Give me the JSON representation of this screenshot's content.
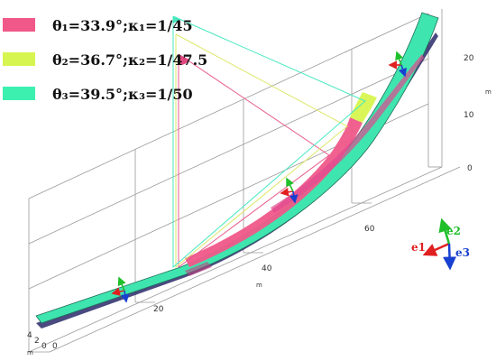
{
  "legend": [
    {
      "text": "θ₁=33.9°;κ₁=1/45",
      "color": "#F0588A"
    },
    {
      "text": "θ₂=36.7°;κ₂=1/47.5",
      "color": "#D7F550"
    },
    {
      "text": "θ₃=39.5°;κ₃=1/50",
      "color": "#3CF0B0"
    }
  ],
  "axes": {
    "x_ticks": [
      "20",
      "40",
      "60"
    ],
    "x_unit": "m",
    "y_ticks": [
      "4",
      "2",
      "0"
    ],
    "y_unit": "m",
    "z_ticks": [
      "20",
      "10",
      "0"
    ],
    "z_unit": "m",
    "extra_zero": "0"
  },
  "basis": {
    "e1": {
      "label": "e1",
      "color": "#E02020"
    },
    "e2": {
      "label": "e2",
      "color": "#1FBF2A"
    },
    "e3": {
      "label": "e3",
      "color": "#1840D0"
    }
  }
}
